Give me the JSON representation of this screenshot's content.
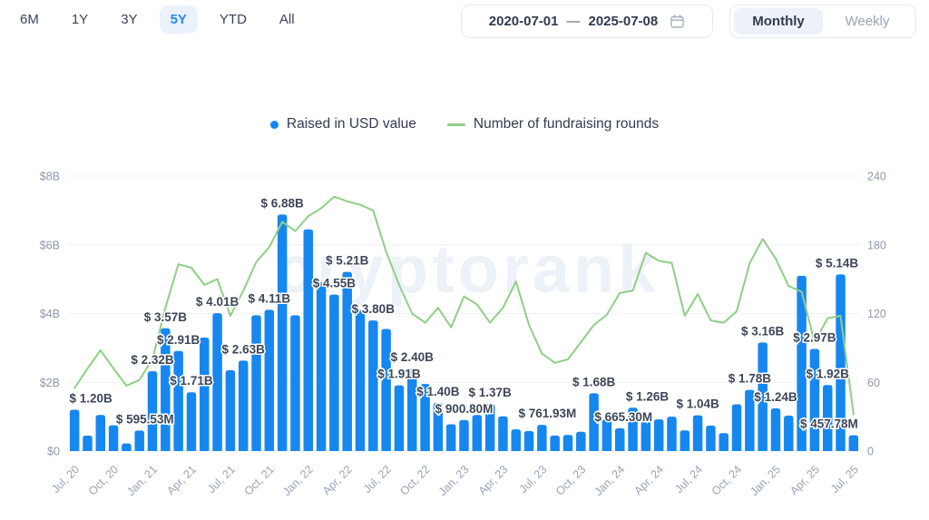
{
  "toolbar": {
    "ranges": [
      {
        "label": "6M",
        "active": false
      },
      {
        "label": "1Y",
        "active": false
      },
      {
        "label": "3Y",
        "active": false
      },
      {
        "label": "5Y",
        "active": true
      },
      {
        "label": "YTD",
        "active": false
      },
      {
        "label": "All",
        "active": false
      }
    ],
    "date_range": {
      "start": "2020-07-01",
      "separator": "—",
      "end": "2025-07-08"
    },
    "granularity": [
      {
        "label": "Monthly",
        "active": true
      },
      {
        "label": "Weekly",
        "active": false
      }
    ]
  },
  "legend": [
    {
      "label": "Raised in USD value",
      "marker": "dot",
      "color": "#1787f0"
    },
    {
      "label": "Number of fundraising rounds",
      "marker": "line",
      "color": "#8fcf86"
    }
  ],
  "watermark": "cryptorank",
  "colors": {
    "bar": "#1787f0",
    "line": "#8fcf86",
    "grid": "#eef1f5",
    "axis_text": "#8f99ab",
    "tick_text": "#99a3b4",
    "bar_label": "#3d4657",
    "accent": "#268af6",
    "watermark": "#edf1f8"
  },
  "chart_data": {
    "type": "bar",
    "title": "Crypto fundraising: raised USD value (bars) and number of fundraising rounds (line), monthly",
    "x": [
      "2020-07",
      "2020-08",
      "2020-09",
      "2020-10",
      "2020-11",
      "2020-12",
      "2021-01",
      "2021-02",
      "2021-03",
      "2021-04",
      "2021-05",
      "2021-06",
      "2021-07",
      "2021-08",
      "2021-09",
      "2021-10",
      "2021-11",
      "2021-12",
      "2022-01",
      "2022-02",
      "2022-03",
      "2022-04",
      "2022-05",
      "2022-06",
      "2022-07",
      "2022-08",
      "2022-09",
      "2022-10",
      "2022-11",
      "2022-12",
      "2023-01",
      "2023-02",
      "2023-03",
      "2023-04",
      "2023-05",
      "2023-06",
      "2023-07",
      "2023-08",
      "2023-09",
      "2023-10",
      "2023-11",
      "2023-12",
      "2024-01",
      "2024-02",
      "2024-03",
      "2024-04",
      "2024-05",
      "2024-06",
      "2024-07",
      "2024-08",
      "2024-09",
      "2024-10",
      "2024-11",
      "2024-12",
      "2025-01",
      "2025-02",
      "2025-03",
      "2025-04",
      "2025-05",
      "2025-06",
      "2025-07"
    ],
    "series": [
      {
        "name": "Raised in USD value",
        "type": "bar",
        "unit": "USD billions",
        "values": [
          1.2,
          0.45,
          1.05,
          0.75,
          0.22,
          0.596,
          2.32,
          3.57,
          2.91,
          1.71,
          3.3,
          4.01,
          2.35,
          2.63,
          3.95,
          4.11,
          6.88,
          3.95,
          6.45,
          4.9,
          4.55,
          5.21,
          4.1,
          3.8,
          3.55,
          1.91,
          2.4,
          1.95,
          1.4,
          0.78,
          0.9,
          1.05,
          1.37,
          1.01,
          0.63,
          0.58,
          0.762,
          0.45,
          0.47,
          0.56,
          1.68,
          0.92,
          0.665,
          1.26,
          0.87,
          0.92,
          1.0,
          0.6,
          1.04,
          0.74,
          0.52,
          1.36,
          1.78,
          3.16,
          1.24,
          1.03,
          5.1,
          2.97,
          1.92,
          5.14,
          0.458
        ]
      },
      {
        "name": "Number of fundraising rounds",
        "type": "line",
        "unit": "rounds",
        "values": [
          55,
          72,
          88,
          72,
          57,
          62,
          80,
          125,
          163,
          160,
          145,
          150,
          118,
          140,
          165,
          178,
          200,
          192,
          205,
          212,
          222,
          218,
          215,
          210,
          174,
          145,
          120,
          112,
          125,
          108,
          135,
          128,
          112,
          125,
          148,
          110,
          85,
          77,
          80,
          95,
          110,
          119,
          138,
          140,
          173,
          166,
          164,
          118,
          137,
          114,
          112,
          122,
          164,
          185,
          168,
          144,
          139,
          95,
          116,
          118,
          32
        ]
      }
    ],
    "bar_labels": {
      "0": "$ 1.20B",
      "5": "$ 595.53M",
      "6": "$ 2.32B",
      "7": "$ 3.57B",
      "8": "$ 2.91B",
      "9": "$ 1.71B",
      "11": "$ 4.01B",
      "13": "$ 2.63B",
      "15": "$ 4.11B",
      "16": "$ 6.88B",
      "20": "$ 4.55B",
      "21": "$ 5.21B",
      "23": "$ 3.80B",
      "25": "$ 1.91B",
      "26": "$ 2.40B",
      "28": "$ 1.40B",
      "30": "$ 900.80M",
      "32": "$ 1.37B",
      "36": "$ 761.93M",
      "40": "$ 1.68B",
      "42": "$ 665.30M",
      "43": "$ 1.26B",
      "48": "$ 1.04B",
      "52": "$ 1.78B",
      "53": "$ 3.16B",
      "54": "$ 1.24B",
      "57": "$ 2.97B",
      "58": "$ 1.92B",
      "59": "$ 5.14B",
      "60": "$ 457.78M"
    },
    "label_offsets": {
      "0": 18,
      "5": 6,
      "36": 6,
      "42": 4,
      "43": 16,
      "59": -4,
      "60": -27
    },
    "xlabel": "",
    "ylabel_left": "Raised in USD value",
    "ylabel_right": "Number of fundraising rounds",
    "y_left": {
      "ticks": [
        "$0",
        "$2B",
        "$4B",
        "$6B",
        "$8B"
      ],
      "min": 0,
      "max": 8,
      "unit": "USD billions"
    },
    "y_right": {
      "ticks": [
        "0",
        "60",
        "120",
        "180",
        "240"
      ],
      "min": 0,
      "max": 240,
      "unit": "rounds"
    },
    "x_tick_labels": [
      "Jul, 20",
      "Oct, 20",
      "Jan, 21",
      "Apr, 21",
      "Jul, 21",
      "Oct, 21",
      "Jan, 22",
      "Apr, 22",
      "Jul, 22",
      "Oct, 22",
      "Jan, 23",
      "Apr, 23",
      "Jul, 23",
      "Oct, 23",
      "Jan, 24",
      "Apr, 24",
      "Jul, 24",
      "Oct, 24",
      "Jan, 25",
      "Apr, 25",
      "Jul, 25"
    ],
    "x_tick_every": 3,
    "grid": true,
    "legend_position": "top-center"
  }
}
